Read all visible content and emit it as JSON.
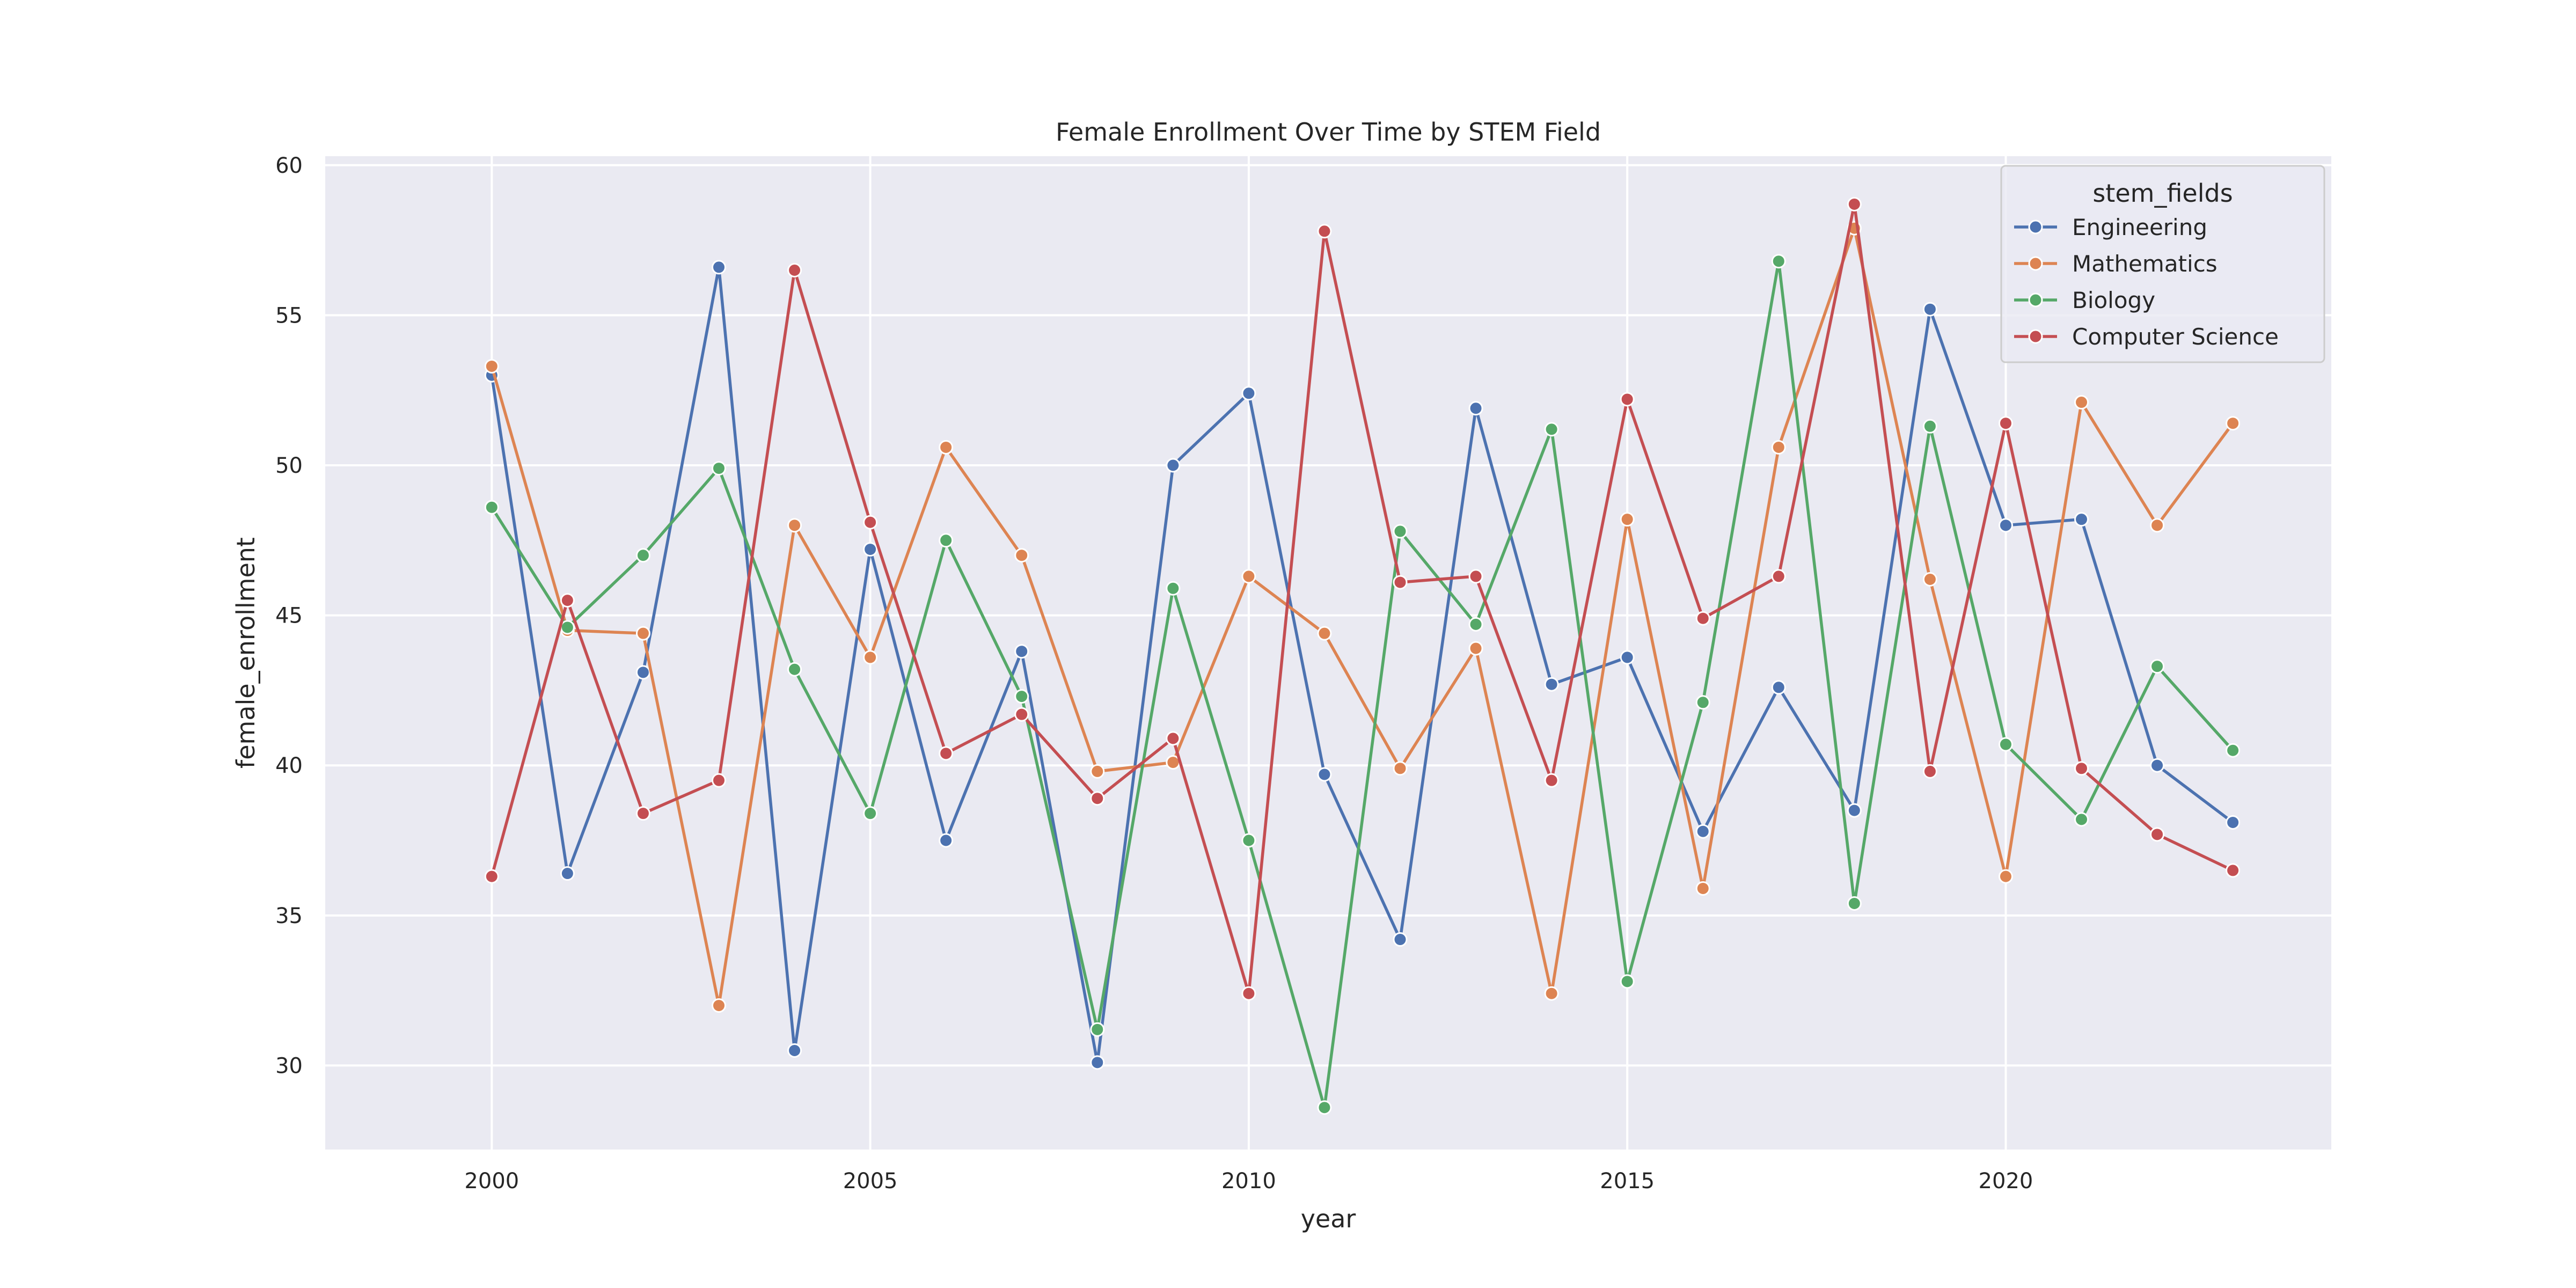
{
  "chart_data": {
    "type": "line",
    "title": "Female Enrollment Over Time by STEM Field",
    "xlabel": "year",
    "ylabel": "female_enrollment",
    "xlim": [
      1997.8,
      2024.3
    ],
    "ylim": [
      27.2,
      60.3
    ],
    "xticks": [
      2000,
      2005,
      2010,
      2015,
      2020
    ],
    "yticks": [
      30,
      35,
      40,
      45,
      50,
      55,
      60
    ],
    "grid": true,
    "legend_title": "stem_fields",
    "legend_position": "top-right",
    "x": [
      2000,
      2001,
      2002,
      2003,
      2004,
      2005,
      2006,
      2007,
      2008,
      2009,
      2010,
      2011,
      2012,
      2013,
      2014,
      2015,
      2016,
      2017,
      2018,
      2019,
      2020,
      2021,
      2022,
      2023
    ],
    "series": [
      {
        "name": "Engineering",
        "color": "#4c72b0",
        "values": [
          53.0,
          36.4,
          43.1,
          56.6,
          30.5,
          47.2,
          37.5,
          43.8,
          30.1,
          50.0,
          52.4,
          39.7,
          34.2,
          51.9,
          42.7,
          43.6,
          37.8,
          42.6,
          38.5,
          55.2,
          48.0,
          48.2,
          40.0,
          38.1
        ]
      },
      {
        "name": "Mathematics",
        "color": "#dd8452",
        "values": [
          53.3,
          44.5,
          44.4,
          32.0,
          48.0,
          43.6,
          50.6,
          47.0,
          39.8,
          40.1,
          46.3,
          44.4,
          39.9,
          43.9,
          32.4,
          48.2,
          35.9,
          50.6,
          57.9,
          46.2,
          36.3,
          52.1,
          48.0,
          51.4
        ]
      },
      {
        "name": "Biology",
        "color": "#55a868",
        "values": [
          48.6,
          44.6,
          47.0,
          49.9,
          43.2,
          38.4,
          47.5,
          42.3,
          31.2,
          45.9,
          37.5,
          28.6,
          47.8,
          44.7,
          51.2,
          32.8,
          42.1,
          56.8,
          35.4,
          51.3,
          40.7,
          38.2,
          43.3,
          40.5
        ]
      },
      {
        "name": "Computer Science",
        "color": "#c44e52",
        "values": [
          36.3,
          45.5,
          38.4,
          39.5,
          56.5,
          48.1,
          40.4,
          41.7,
          38.9,
          40.9,
          32.4,
          57.8,
          46.1,
          46.3,
          39.5,
          52.2,
          44.9,
          46.3,
          58.7,
          39.8,
          51.4,
          39.9,
          37.7,
          36.5
        ]
      }
    ]
  }
}
